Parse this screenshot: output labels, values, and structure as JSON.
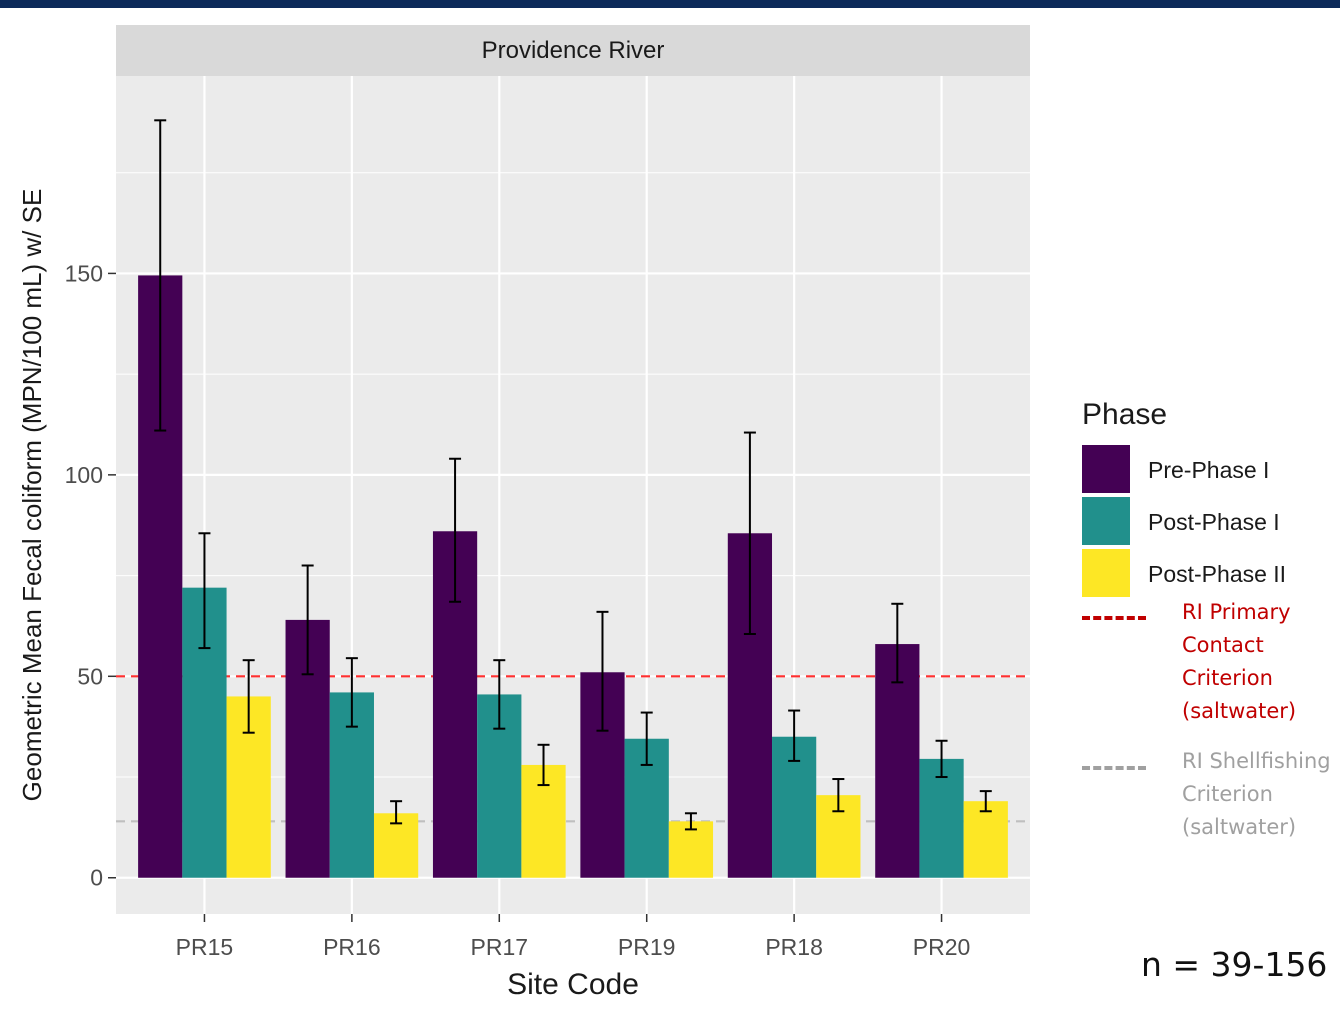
{
  "colors": {
    "top_bar": "#0c2a5a",
    "panel_bg": "#ebebeb",
    "strip_bg": "#d9d9d9",
    "grid": "#ffffff",
    "primary_ref": "#ff3030",
    "primary_ref_legend": "#c00000",
    "shellfish_ref": "#bfbfbf",
    "shellfish_ref_legend": "#a0a0a0"
  },
  "chart_data": {
    "type": "bar",
    "facet_title": "Providence River",
    "xlabel": "Site Code",
    "ylabel": "Geometric Mean Fecal coliform (MPN/100 mL) w/ SE",
    "ylim": [
      -9,
      199
    ],
    "yticks": [
      0,
      50,
      100,
      150
    ],
    "grid": true,
    "categories": [
      "PR15",
      "PR16",
      "PR17",
      "PR19",
      "PR18",
      "PR20"
    ],
    "series": [
      {
        "name": "Pre-Phase I",
        "color": "#440154",
        "values": [
          149.5,
          64,
          86,
          51,
          85.5,
          58
        ],
        "se_low": [
          111,
          50.5,
          68.5,
          36.5,
          60.5,
          48.5
        ],
        "se_high": [
          188,
          77.5,
          104,
          66,
          110.5,
          68
        ]
      },
      {
        "name": "Post-Phase I",
        "color": "#21908c",
        "values": [
          72,
          46,
          45.5,
          34.5,
          35,
          29.5
        ],
        "se_low": [
          57,
          37.5,
          37,
          28,
          29,
          25
        ],
        "se_high": [
          85.5,
          54.5,
          54,
          41,
          41.5,
          34
        ]
      },
      {
        "name": "Post-Phase II",
        "color": "#fde725",
        "values": [
          45,
          16,
          28,
          14,
          20.5,
          19
        ],
        "se_low": [
          36,
          13.5,
          23,
          12,
          16.5,
          16.5
        ],
        "se_high": [
          54,
          19,
          33,
          16,
          24.5,
          21.5
        ]
      }
    ],
    "reference_lines": [
      {
        "value": 50,
        "label": "RI Primary Contact Criterion (saltwater)",
        "color": "#ff3030"
      },
      {
        "value": 14,
        "label": "RI Shellfishing Criterion (saltwater)",
        "color": "#bfbfbf"
      }
    ],
    "legend_title": "Phase",
    "legend_position": "right"
  },
  "legend": {
    "title": "Phase",
    "items": [
      "Pre-Phase I",
      "Post-Phase I",
      "Post-Phase II"
    ],
    "primary_ref_label": "RI Primary Contact Criterion (saltwater)",
    "shellfish_ref_label": "RI Shellfishing Criterion (saltwater)"
  },
  "annotation": {
    "n_label": "n = 39-156"
  }
}
